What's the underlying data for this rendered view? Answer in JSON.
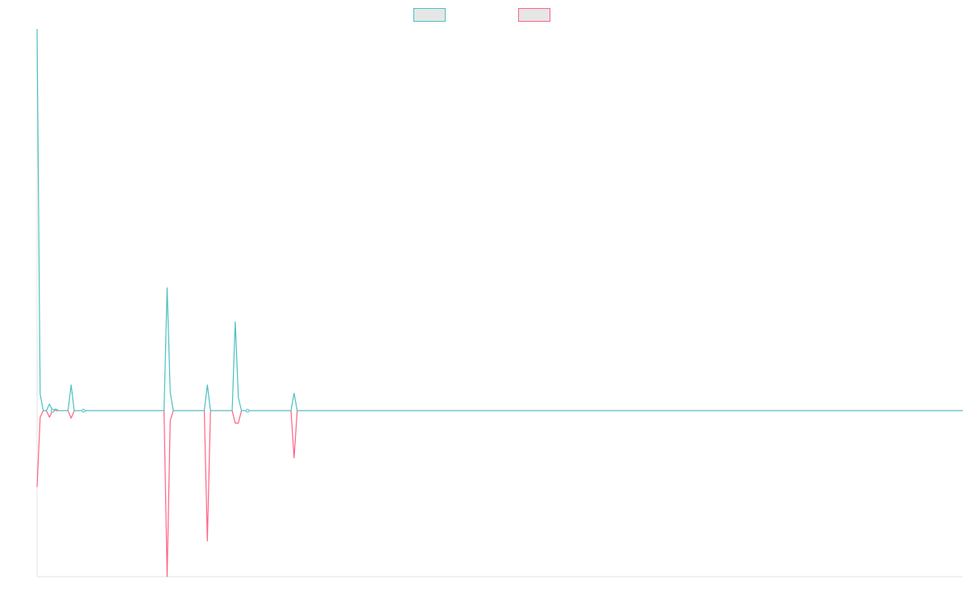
{
  "chart_data": {
    "type": "line",
    "title": "",
    "xlabel": "",
    "ylabel": "",
    "x_count": 300,
    "ylim": [
      -2,
      4.6
    ],
    "grid": false,
    "legend_position": "top",
    "colors": [
      "#4bc0c0",
      "#ff6384"
    ],
    "series": [
      {
        "name": "",
        "color": "#4bc0c0",
        "points": [
          [
            0,
            4.6
          ],
          [
            1,
            0.2
          ],
          [
            2,
            0
          ],
          [
            3,
            0
          ],
          [
            4,
            0.08
          ],
          [
            5,
            0
          ],
          [
            6,
            0.02
          ],
          [
            7,
            0
          ],
          [
            10,
            0
          ],
          [
            11,
            0.31
          ],
          [
            12,
            0
          ],
          [
            14,
            0
          ],
          [
            15,
            0
          ],
          [
            41,
            0
          ],
          [
            42,
            1.48
          ],
          [
            43,
            0.22
          ],
          [
            44,
            0
          ],
          [
            54,
            0
          ],
          [
            55,
            0.31
          ],
          [
            56,
            0
          ],
          [
            63,
            0
          ],
          [
            64,
            1.07
          ],
          [
            65,
            0.16
          ],
          [
            66,
            0
          ],
          [
            67,
            0
          ],
          [
            68,
            0
          ],
          [
            82,
            0
          ],
          [
            83,
            0.21
          ],
          [
            84,
            0
          ],
          [
            299,
            0
          ]
        ]
      },
      {
        "name": "",
        "color": "#ff6384",
        "points": [
          [
            0,
            -0.92
          ],
          [
            1,
            -0.08
          ],
          [
            2,
            0
          ],
          [
            3,
            0
          ],
          [
            4,
            -0.08
          ],
          [
            5,
            0
          ],
          [
            6,
            0
          ],
          [
            7,
            0
          ],
          [
            10,
            0
          ],
          [
            11,
            -0.09
          ],
          [
            12,
            0
          ],
          [
            41,
            0
          ],
          [
            42,
            -2.0
          ],
          [
            43,
            -0.12
          ],
          [
            44,
            0
          ],
          [
            54,
            0
          ],
          [
            55,
            -1.57
          ],
          [
            56,
            0
          ],
          [
            63,
            0
          ],
          [
            64,
            -0.15
          ],
          [
            65,
            -0.15
          ],
          [
            66,
            0
          ],
          [
            82,
            0
          ],
          [
            83,
            -0.57
          ],
          [
            84,
            0
          ],
          [
            299,
            0
          ]
        ]
      }
    ],
    "markers": [
      {
        "series": 0,
        "x": 5
      },
      {
        "series": 0,
        "x": 15
      },
      {
        "series": 0,
        "x": 68
      }
    ]
  }
}
